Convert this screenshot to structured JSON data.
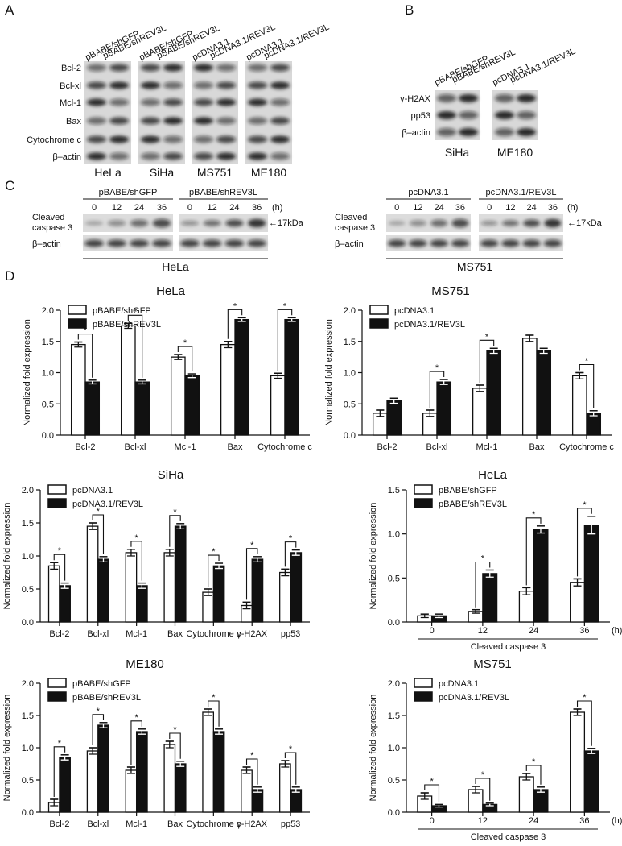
{
  "panel_labels": [
    "A",
    "B",
    "C",
    "D"
  ],
  "blot_a": {
    "lanes": [
      "pBABE/shGFP",
      "pBABE/shREV3L",
      "pBABE/shGFP",
      "pBABE/shREV3L",
      "pcDNA3.1",
      "pcDNA3.1/REV3L",
      "pcDNA3.1",
      "pcDNA3.1/REV3L"
    ],
    "rows": [
      "Bcl-2",
      "Bcl-xl",
      "Mcl-1",
      "Bax",
      "Cytochrome c",
      "β–actin"
    ],
    "cell_lines": [
      "HeLa",
      "SiHa",
      "MS751",
      "ME180"
    ]
  },
  "blot_b": {
    "lanes": [
      "pBABE/shGFP",
      "pBABE/shREV3L",
      "pcDNA3.1",
      "pcDNA3.1/REV3L"
    ],
    "rows": [
      "γ-H2AX",
      "pp53",
      "β–actin"
    ],
    "cell_lines": [
      "SiHa",
      "ME180"
    ]
  },
  "blot_c": [
    {
      "cell_line": "HeLa",
      "caspase_label": [
        "Cleaved",
        "caspase 3"
      ],
      "actin_label": "β–actin",
      "marker": "←17kDa",
      "time_unit": "(h)",
      "groups": [
        {
          "label": "pBABE/shGFP",
          "times": [
            0,
            12,
            24,
            36
          ]
        },
        {
          "label": "pBABE/shREV3L",
          "times": [
            0,
            12,
            24,
            36
          ]
        }
      ]
    },
    {
      "cell_line": "MS751",
      "caspase_label": [
        "Cleaved",
        "caspase 3"
      ],
      "actin_label": "β–actin",
      "marker": "←17kDa",
      "time_unit": "(h)",
      "groups": [
        {
          "label": "pcDNA3.1",
          "times": [
            0,
            12,
            24,
            36
          ]
        },
        {
          "label": "pcDNA3.1/REV3L",
          "times": [
            0,
            12,
            24,
            36
          ]
        }
      ]
    }
  ],
  "chart_data": [
    {
      "type": "bar",
      "title": "HeLa",
      "ylabel": "Normalized fold expression",
      "legend": "upper left",
      "categories": [
        "Bcl-2",
        "Bcl-xl",
        "Mcl-1",
        "Bax",
        "Cytochrome c"
      ],
      "series": [
        {
          "name": "pBABE/shGFP",
          "color": "#ffffff",
          "values": [
            1.45,
            1.75,
            1.25,
            1.45,
            0.95
          ],
          "errors": [
            0.04,
            0.04,
            0.04,
            0.05,
            0.04
          ]
        },
        {
          "name": "pBABE/shREV3L",
          "color": "#111111",
          "values": [
            0.85,
            0.85,
            0.95,
            1.85,
            1.85
          ],
          "errors": [
            0.03,
            0.03,
            0.03,
            0.03,
            0.03
          ]
        }
      ],
      "significance": [
        "*",
        "*",
        "*",
        "*",
        "*"
      ],
      "ylim": [
        0,
        2
      ],
      "yticks": [
        {
          "value": 0,
          "label": "0.0"
        },
        0.5,
        {
          "value": 1,
          "label": "1.0"
        },
        1.5,
        {
          "value": 2,
          "label": "2.0"
        }
      ]
    },
    {
      "type": "bar",
      "title": "MS751",
      "ylabel": "Normalized fold expression",
      "legend": "upper left",
      "categories": [
        "Bcl-2",
        "Bcl-xl",
        "Mcl-1",
        "Bax",
        "Cytochrome c"
      ],
      "series": [
        {
          "name": "pcDNA3.1",
          "color": "#ffffff",
          "values": [
            0.35,
            0.35,
            0.75,
            1.55,
            0.95
          ],
          "errors": [
            0.05,
            0.05,
            0.05,
            0.05,
            0.05
          ]
        },
        {
          "name": "pcDNA3.1/REV3L",
          "color": "#111111",
          "values": [
            0.55,
            0.85,
            1.35,
            1.35,
            0.35
          ],
          "errors": [
            0.04,
            0.04,
            0.04,
            0.04,
            0.04
          ]
        }
      ],
      "significance": [
        null,
        "*",
        "*",
        null,
        "*"
      ],
      "ylim": [
        0,
        2
      ],
      "yticks": [
        {
          "value": 0,
          "label": "0.0"
        },
        0.5,
        {
          "value": 1,
          "label": "1.0"
        },
        1.5,
        {
          "value": 2,
          "label": "2.0"
        }
      ]
    },
    {
      "type": "bar",
      "title": "SiHa",
      "ylabel": "Normalized fold expression",
      "legend": "upper left",
      "categories": [
        "Bcl-2",
        "Bcl-xl",
        "Mcl-1",
        "Bax",
        "Cytochrome c",
        "γ-H2AX",
        "pp53"
      ],
      "series": [
        {
          "name": "pcDNA3.1",
          "color": "#ffffff",
          "values": [
            0.85,
            1.45,
            1.05,
            1.05,
            0.45,
            0.25,
            0.75
          ],
          "errors": [
            0.05,
            0.05,
            0.05,
            0.05,
            0.05,
            0.05,
            0.05
          ]
        },
        {
          "name": "pcDNA3.1/REV3L",
          "color": "#111111",
          "values": [
            0.55,
            0.95,
            0.55,
            1.45,
            0.85,
            0.95,
            1.05
          ],
          "errors": [
            0.04,
            0.04,
            0.04,
            0.04,
            0.04,
            0.04,
            0.04
          ]
        }
      ],
      "significance": [
        "*",
        "*",
        "*",
        "*",
        "*",
        "*",
        "*"
      ],
      "ylim": [
        0,
        2
      ],
      "yticks": [
        {
          "value": 0,
          "label": "0.0"
        },
        0.5,
        {
          "value": 1,
          "label": "1.0"
        },
        1.5,
        {
          "value": 2,
          "label": "2.0"
        }
      ]
    },
    {
      "type": "bar",
      "title": "HeLa",
      "ylabel": "Normalized fold expression",
      "xlabel": "Cleaved caspase 3",
      "x_unit": "(h)",
      "legend": "upper left",
      "categories": [
        0,
        12,
        24,
        36
      ],
      "series": [
        {
          "name": "pBABE/shGFP",
          "color": "#ffffff",
          "values": [
            0.07,
            0.12,
            0.35,
            0.45
          ],
          "errors": [
            0.02,
            0.02,
            0.04,
            0.04
          ]
        },
        {
          "name": "pBABE/shREV3L",
          "color": "#111111",
          "values": [
            0.07,
            0.55,
            1.05,
            1.1
          ],
          "errors": [
            0.02,
            0.04,
            0.04,
            0.1
          ]
        }
      ],
      "significance": [
        null,
        "*",
        "*",
        "*"
      ],
      "ylim": [
        0,
        1.5
      ],
      "yticks": [
        {
          "value": 0,
          "label": "0.0"
        },
        0.5,
        {
          "value": 1,
          "label": "1.0"
        },
        1.5
      ]
    },
    {
      "type": "bar",
      "title": "ME180",
      "ylabel": "Normalized fold expression",
      "legend": "upper left",
      "categories": [
        "Bcl-2",
        "Bcl-xl",
        "Mcl-1",
        "Bax",
        "Cytochrome c",
        "γ-H2AX",
        "pp53"
      ],
      "series": [
        {
          "name": "pBABE/shGFP",
          "color": "#ffffff",
          "values": [
            0.15,
            0.95,
            0.65,
            1.05,
            1.55,
            0.65,
            0.75
          ],
          "errors": [
            0.05,
            0.05,
            0.05,
            0.05,
            0.05,
            0.05,
            0.05
          ]
        },
        {
          "name": "pBABE/shREV3L",
          "color": "#111111",
          "values": [
            0.85,
            1.35,
            1.25,
            0.75,
            1.25,
            0.35,
            0.35
          ],
          "errors": [
            0.04,
            0.04,
            0.04,
            0.04,
            0.04,
            0.04,
            0.04
          ]
        }
      ],
      "significance": [
        "*",
        "*",
        "*",
        "*",
        "*",
        "*",
        "*"
      ],
      "ylim": [
        0,
        2
      ],
      "yticks": [
        {
          "value": 0,
          "label": "0.0"
        },
        0.5,
        {
          "value": 1,
          "label": "1.0"
        },
        1.5,
        {
          "value": 2,
          "label": "2.0"
        }
      ]
    },
    {
      "type": "bar",
      "title": "MS751",
      "ylabel": "Normalized fold expression",
      "xlabel": "Cleaved caspase 3",
      "x_unit": "(h)",
      "legend": "upper left",
      "categories": [
        0,
        12,
        24,
        36
      ],
      "series": [
        {
          "name": "pcDNA3.1",
          "color": "#ffffff",
          "values": [
            0.25,
            0.35,
            0.55,
            1.55
          ],
          "errors": [
            0.05,
            0.05,
            0.05,
            0.05
          ]
        },
        {
          "name": "pcDNA3.1/REV3L",
          "color": "#111111",
          "values": [
            0.1,
            0.12,
            0.35,
            0.95
          ],
          "errors": [
            0.02,
            0.02,
            0.04,
            0.04
          ]
        }
      ],
      "significance": [
        "*",
        "*",
        "*",
        "*"
      ],
      "ylim": [
        0,
        2
      ],
      "yticks": [
        {
          "value": 0,
          "label": "0.0"
        },
        0.5,
        {
          "value": 1,
          "label": "1.0"
        },
        1.5,
        {
          "value": 2,
          "label": "2.0"
        }
      ]
    }
  ]
}
